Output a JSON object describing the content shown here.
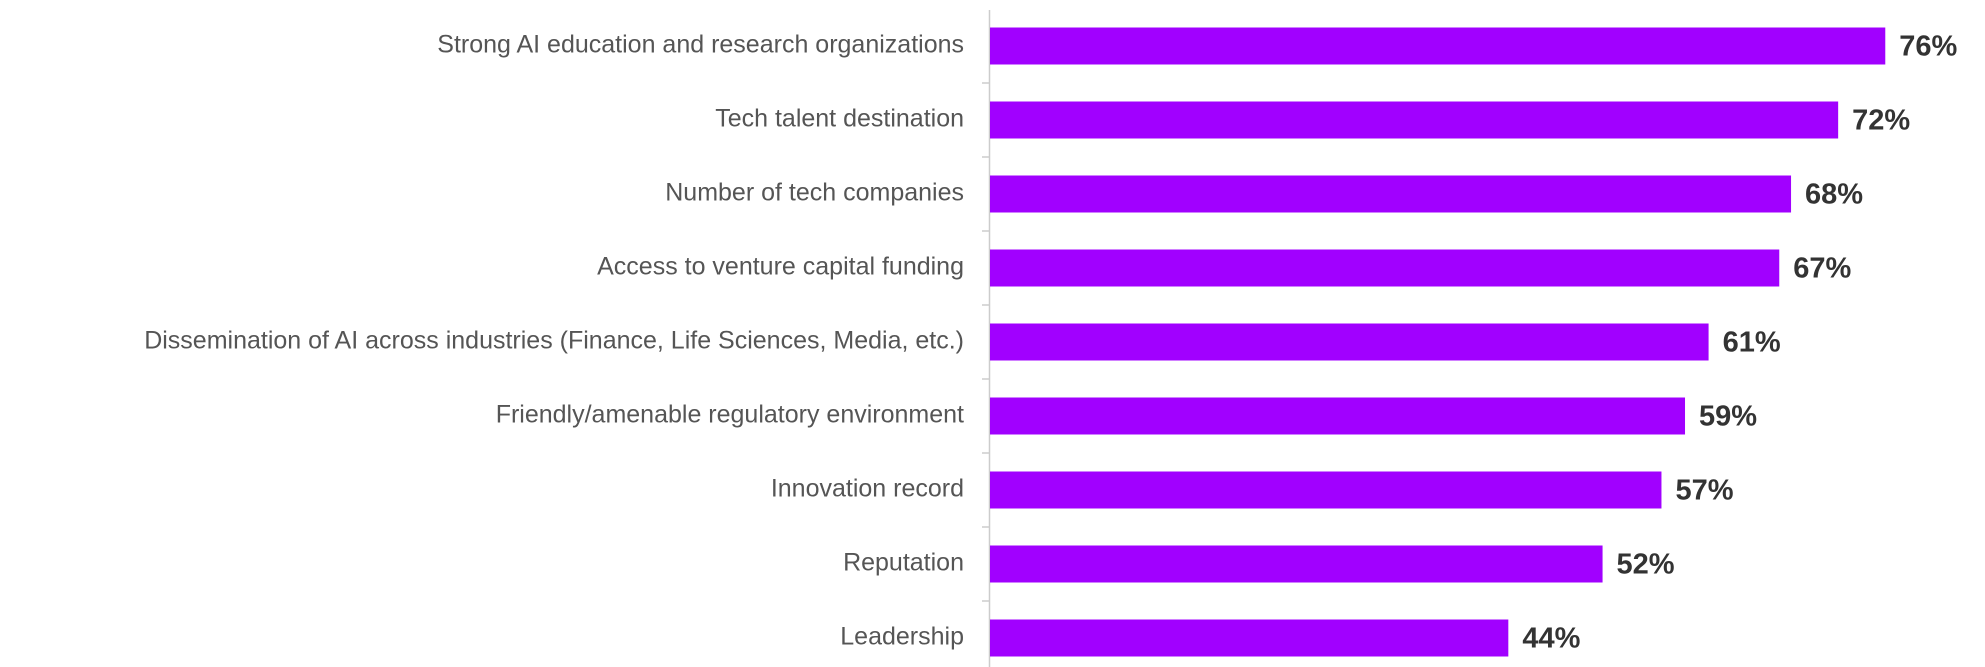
{
  "chart_data": {
    "type": "barh",
    "color": "#a100ff",
    "categories": [
      "Strong AI education and research organizations",
      "Tech talent destination",
      "Number of tech companies",
      "Access to venture capital funding",
      "Dissemination of AI across industries (Finance, Life Sciences, Media, etc.)",
      "Friendly/amenable regulatory environment",
      "Innovation record",
      "Reputation",
      "Leadership"
    ],
    "values": [
      76,
      72,
      68,
      67,
      61,
      59,
      57,
      52,
      44
    ],
    "value_labels": [
      "76%",
      "72%",
      "68%",
      "67%",
      "61%",
      "59%",
      "57%",
      "52%",
      "44%"
    ]
  }
}
